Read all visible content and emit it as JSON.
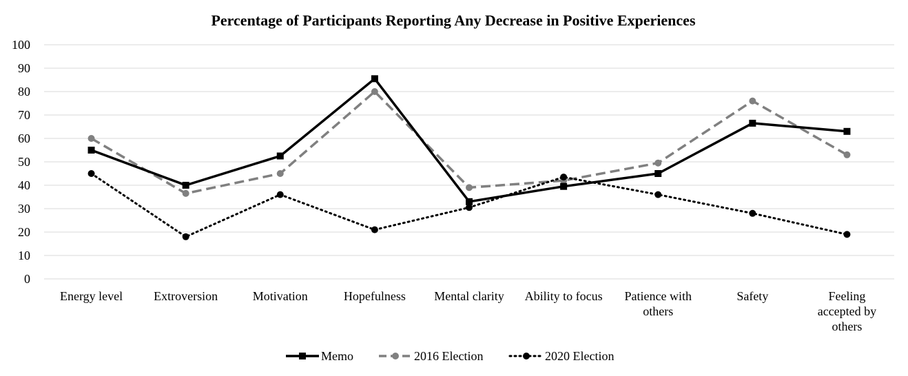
{
  "chart_data": {
    "type": "line",
    "title": "Percentage of Participants Reporting Any Decrease in Positive Experiences",
    "categories": [
      [
        "Energy level"
      ],
      [
        "Extroversion"
      ],
      [
        "Motivation"
      ],
      [
        "Hopefulness"
      ],
      [
        "Mental clarity"
      ],
      [
        "Ability to focus"
      ],
      [
        "Patience with",
        "others"
      ],
      [
        "Safety"
      ],
      [
        "Feeling",
        "accepted by",
        "others"
      ]
    ],
    "ylim": [
      0,
      100
    ],
    "yticks": [
      0,
      10,
      20,
      30,
      40,
      50,
      60,
      70,
      80,
      90,
      100
    ],
    "grid": true,
    "legend_position": "bottom",
    "series": [
      {
        "name": "Memo",
        "values": [
          55,
          40,
          52.5,
          85.5,
          33,
          39.5,
          45,
          66.5,
          63
        ],
        "color": "#000000",
        "style": "solid",
        "marker": "square"
      },
      {
        "name": "2016 Election",
        "values": [
          60,
          36.5,
          45,
          80,
          39,
          42,
          49.5,
          76,
          53
        ],
        "color": "#808080",
        "style": "dashed",
        "marker": "circle"
      },
      {
        "name": "2020 Election",
        "values": [
          45,
          18,
          36,
          21,
          30.5,
          43.5,
          36,
          28,
          19
        ],
        "color": "#000000",
        "style": "dotted",
        "marker": "circle"
      }
    ]
  }
}
